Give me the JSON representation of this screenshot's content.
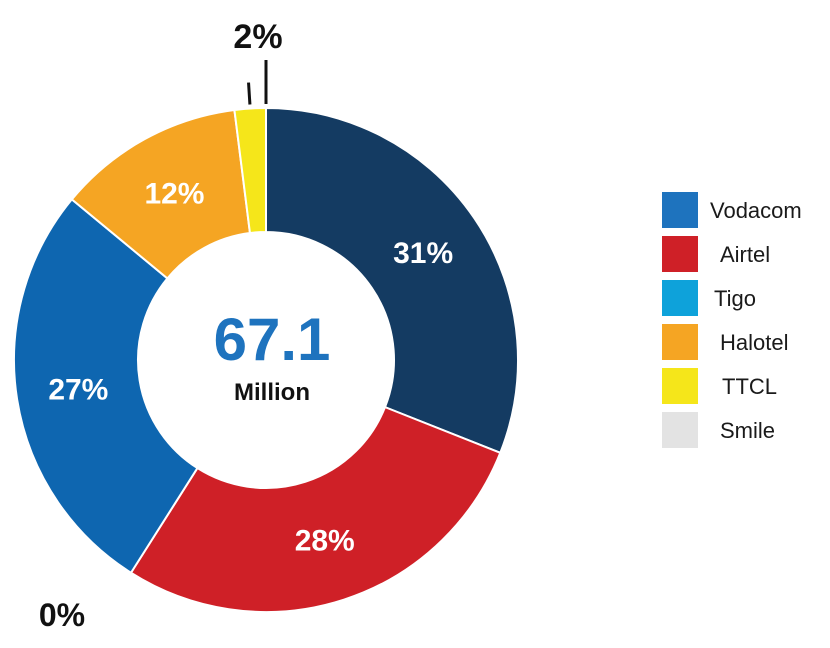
{
  "chart_data": {
    "type": "pie",
    "variant": "donut",
    "categories": [
      "Vodacom",
      "Airtel",
      "Tigo",
      "Halotel",
      "TTCL",
      "Smile"
    ],
    "values": [
      31,
      28,
      27,
      12,
      2,
      0
    ],
    "value_labels": [
      "31%",
      "28%",
      "27%",
      "12%",
      "2%",
      "0%"
    ],
    "colors": [
      "#143B62",
      "#CF2027",
      "#0E66B0",
      "#F5A523",
      "#F5E61A",
      "#E3E3E3"
    ],
    "center_value": "67.1",
    "center_unit": "Million",
    "legend_position": "right"
  },
  "legend": {
    "items": [
      {
        "label": "Vodacom",
        "color": "#1E73BE"
      },
      {
        "label": "Airtel",
        "color": "#CF2027"
      },
      {
        "label": "Tigo",
        "color": "#0EA2DA"
      },
      {
        "label": "Halotel",
        "color": "#F5A523"
      },
      {
        "label": "TTCL",
        "color": "#F5E61A"
      },
      {
        "label": "Smile",
        "color": "#E3E3E3"
      }
    ]
  }
}
